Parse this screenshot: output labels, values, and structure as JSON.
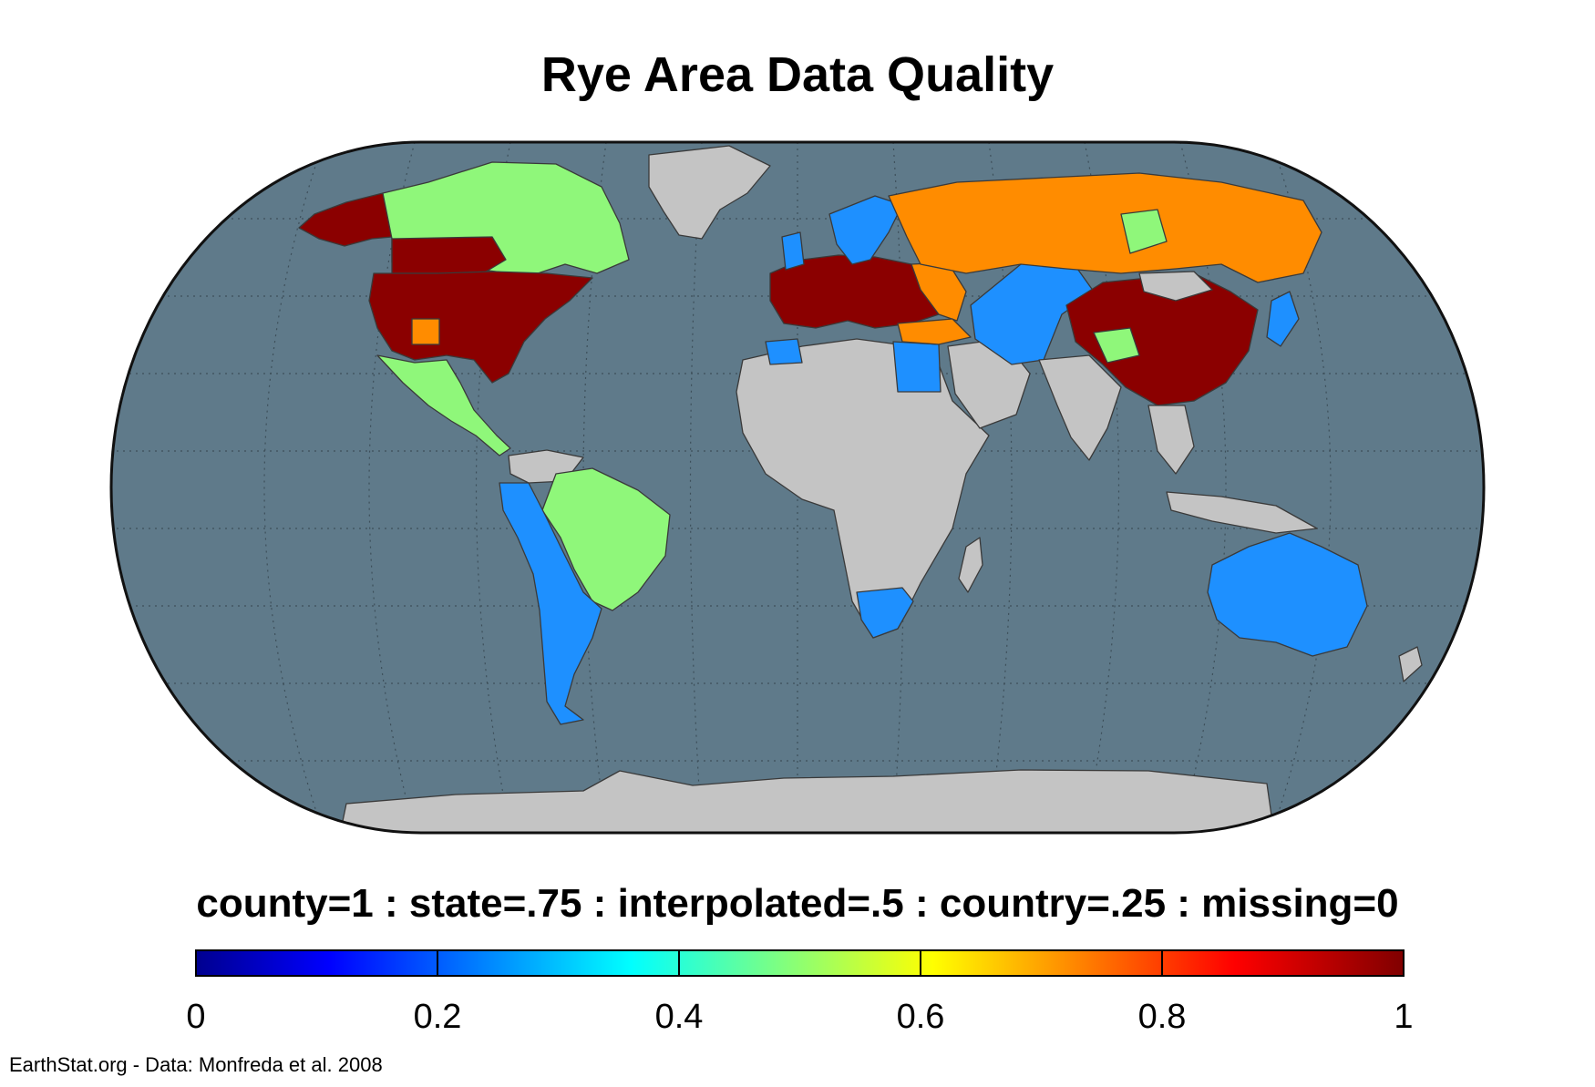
{
  "title": "Rye Area Data Quality",
  "legend": {
    "description": "county=1 : state=.75 : interpolated=.5 : country=.25 : missing=0",
    "ticks": [
      "0",
      "0.2",
      "0.4",
      "0.6",
      "0.8",
      "1"
    ],
    "range": [
      0,
      1
    ],
    "categories": [
      {
        "label": "county",
        "value": 1
      },
      {
        "label": "state",
        "value": 0.75
      },
      {
        "label": "interpolated",
        "value": 0.5
      },
      {
        "label": "country",
        "value": 0.25
      },
      {
        "label": "missing",
        "value": 0
      }
    ]
  },
  "colors": {
    "ocean": "#5f7a8a",
    "missing_land": "#c4c4c4",
    "country_025": "#1e90ff",
    "interpolated_05": "#8ff77a",
    "state_075": "#ff8c00",
    "county_1": "#8b0000"
  },
  "regions": [
    {
      "name": "United States",
      "value": 1
    },
    {
      "name": "Alaska",
      "value": 1
    },
    {
      "name": "Canada",
      "value": 0.5
    },
    {
      "name": "Mexico",
      "value": 0.5
    },
    {
      "name": "Brazil",
      "value": 0.5
    },
    {
      "name": "Andes and Argentina",
      "value": 0.25
    },
    {
      "name": "Europe",
      "value": 1
    },
    {
      "name": "Russia",
      "value": 0.75
    },
    {
      "name": "Central Asia",
      "value": 0.25
    },
    {
      "name": "China",
      "value": 1
    },
    {
      "name": "Australia",
      "value": 0.25
    },
    {
      "name": "South Africa",
      "value": 0.25
    },
    {
      "name": "Africa",
      "value": 0
    },
    {
      "name": "South Asia",
      "value": 0
    },
    {
      "name": "Greenland",
      "value": 0
    },
    {
      "name": "Antarctica",
      "value": 0
    }
  ],
  "credit": "EarthStat.org - Data: Monfreda et al. 2008"
}
